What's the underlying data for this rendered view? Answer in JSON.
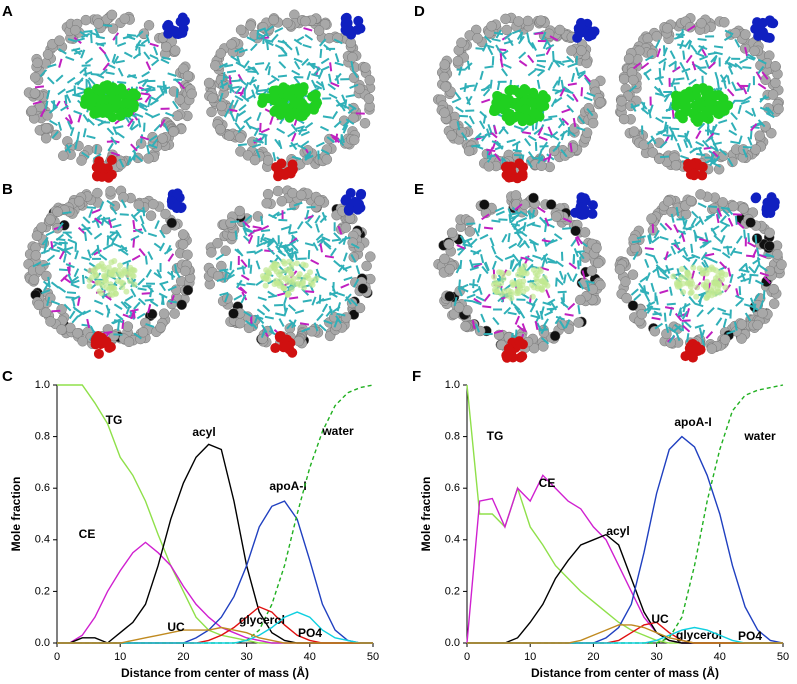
{
  "panel_labels": [
    "A",
    "B",
    "D",
    "E"
  ],
  "chart_data": [
    {
      "type": "line",
      "label": "C",
      "xlabel": "Distance from center of mass (Å)",
      "ylabel": "Mole fraction",
      "xlim": [
        0,
        50
      ],
      "xticks": [
        0,
        10,
        20,
        30,
        40,
        50
      ],
      "ylim": [
        0,
        1
      ],
      "yticks": [
        {
          "value": 0,
          "label": "0.0"
        },
        {
          "value": 0.2,
          "label": "0.2"
        },
        {
          "value": 0.4,
          "label": "0.4"
        },
        {
          "value": 0.6,
          "label": "0.6"
        },
        {
          "value": 0.8,
          "label": "0.8"
        },
        {
          "value": 1,
          "label": "1.0"
        }
      ],
      "x": [
        0,
        2,
        4,
        6,
        8,
        10,
        12,
        14,
        16,
        18,
        20,
        22,
        24,
        26,
        28,
        30,
        32,
        34,
        36,
        38,
        40,
        42,
        44,
        46,
        48,
        50
      ],
      "series": [
        {
          "name": "TG",
          "color": "#8fe04a",
          "values": [
            1,
            1,
            1,
            0.93,
            0.85,
            0.72,
            0.65,
            0.55,
            0.42,
            0.3,
            0.2,
            0.1,
            0.05,
            0.03,
            0.02,
            0.01,
            0,
            0,
            0,
            0,
            0,
            0,
            0,
            0,
            0,
            0
          ]
        },
        {
          "name": "CE",
          "color": "#d020d0",
          "values": [
            0,
            0,
            0.03,
            0.1,
            0.2,
            0.28,
            0.35,
            0.39,
            0.35,
            0.3,
            0.22,
            0.15,
            0.1,
            0.06,
            0.04,
            0.02,
            0.01,
            0,
            0,
            0,
            0,
            0,
            0,
            0,
            0,
            0
          ]
        },
        {
          "name": "acyl",
          "color": "#000000",
          "values": [
            0,
            0,
            0.02,
            0.02,
            0,
            0.04,
            0.08,
            0.15,
            0.3,
            0.48,
            0.62,
            0.72,
            0.77,
            0.75,
            0.55,
            0.3,
            0.12,
            0.04,
            0.01,
            0,
            0,
            0,
            0,
            0,
            0,
            0
          ]
        },
        {
          "name": "apoA-I",
          "color": "#2040c0",
          "values": [
            0,
            0,
            0,
            0,
            0,
            0,
            0,
            0,
            0,
            0,
            0,
            0.02,
            0.05,
            0.1,
            0.18,
            0.3,
            0.45,
            0.53,
            0.55,
            0.48,
            0.32,
            0.15,
            0.05,
            0.01,
            0,
            0
          ]
        },
        {
          "name": "water",
          "color": "#20b020",
          "dashed": true,
          "values": [
            0,
            0,
            0,
            0,
            0,
            0,
            0,
            0,
            0,
            0,
            0,
            0,
            0,
            0,
            0,
            0.01,
            0.05,
            0.15,
            0.3,
            0.5,
            0.68,
            0.82,
            0.92,
            0.97,
            0.99,
            1
          ]
        },
        {
          "name": "glycerol",
          "color": "#e01010",
          "values": [
            0,
            0,
            0,
            0,
            0,
            0,
            0,
            0,
            0,
            0,
            0,
            0,
            0.01,
            0.03,
            0.06,
            0.1,
            0.14,
            0.12,
            0.07,
            0.03,
            0.01,
            0,
            0,
            0,
            0,
            0
          ]
        },
        {
          "name": "PO4",
          "color": "#10d0e0",
          "values": [
            0,
            0,
            0,
            0,
            0,
            0,
            0,
            0,
            0,
            0,
            0,
            0,
            0,
            0,
            0,
            0.01,
            0.03,
            0.06,
            0.1,
            0.12,
            0.1,
            0.05,
            0.02,
            0.01,
            0,
            0
          ]
        },
        {
          "name": "UC",
          "color": "#c08a20",
          "values": [
            0,
            0,
            0,
            0,
            0,
            0,
            0.01,
            0.02,
            0.03,
            0.04,
            0.05,
            0.05,
            0.05,
            0.06,
            0.05,
            0.04,
            0.02,
            0.01,
            0,
            0,
            0,
            0,
            0,
            0,
            0,
            0
          ]
        }
      ]
    },
    {
      "type": "line",
      "label": "F",
      "xlabel": "Distance from center of mass (Å)",
      "ylabel": "Mole fraction",
      "xlim": [
        0,
        50
      ],
      "xticks": [
        0,
        10,
        20,
        30,
        40,
        50
      ],
      "ylim": [
        0,
        1
      ],
      "yticks": [
        {
          "value": 0,
          "label": "0.0"
        },
        {
          "value": 0.2,
          "label": "0.2"
        },
        {
          "value": 0.4,
          "label": "0.4"
        },
        {
          "value": 0.6,
          "label": "0.6"
        },
        {
          "value": 0.8,
          "label": "0.8"
        },
        {
          "value": 1,
          "label": "1.0"
        }
      ],
      "x": [
        0,
        2,
        4,
        6,
        8,
        10,
        12,
        14,
        16,
        18,
        20,
        22,
        24,
        26,
        28,
        30,
        32,
        34,
        36,
        38,
        40,
        42,
        44,
        46,
        48,
        50
      ],
      "series": [
        {
          "name": "TG",
          "color": "#8fe04a",
          "values": [
            1,
            0.5,
            0.5,
            0.45,
            0.6,
            0.45,
            0.38,
            0.3,
            0.25,
            0.2,
            0.16,
            0.12,
            0.08,
            0.05,
            0.03,
            0.01,
            0,
            0,
            0,
            0,
            0,
            0,
            0,
            0,
            0,
            0
          ]
        },
        {
          "name": "CE",
          "color": "#d020d0",
          "values": [
            0,
            0.55,
            0.56,
            0.45,
            0.6,
            0.55,
            0.65,
            0.6,
            0.55,
            0.52,
            0.45,
            0.4,
            0.3,
            0.2,
            0.1,
            0.04,
            0.01,
            0,
            0,
            0,
            0,
            0,
            0,
            0,
            0,
            0
          ]
        },
        {
          "name": "acyl",
          "color": "#000000",
          "values": [
            0,
            0,
            0,
            0,
            0.02,
            0.08,
            0.15,
            0.25,
            0.32,
            0.38,
            0.4,
            0.42,
            0.38,
            0.25,
            0.12,
            0.04,
            0.01,
            0,
            0,
            0,
            0,
            0,
            0,
            0,
            0,
            0
          ]
        },
        {
          "name": "apoA-I",
          "color": "#2040c0",
          "values": [
            0,
            0,
            0,
            0,
            0,
            0,
            0,
            0,
            0,
            0,
            0,
            0.02,
            0.06,
            0.15,
            0.35,
            0.58,
            0.75,
            0.8,
            0.76,
            0.65,
            0.5,
            0.3,
            0.14,
            0.05,
            0.01,
            0
          ]
        },
        {
          "name": "water",
          "color": "#20b020",
          "dashed": true,
          "values": [
            0,
            0,
            0,
            0,
            0,
            0,
            0,
            0,
            0,
            0,
            0,
            0,
            0,
            0,
            0,
            0,
            0.02,
            0.1,
            0.3,
            0.55,
            0.75,
            0.9,
            0.96,
            0.98,
            0.99,
            1
          ]
        },
        {
          "name": "glycerol",
          "color": "#e01010",
          "values": [
            0,
            0,
            0,
            0,
            0,
            0,
            0,
            0,
            0,
            0,
            0,
            0,
            0.01,
            0.04,
            0.07,
            0.08,
            0.04,
            0.01,
            0,
            0,
            0,
            0,
            0,
            0,
            0,
            0
          ]
        },
        {
          "name": "PO4",
          "color": "#10d0e0",
          "values": [
            0,
            0,
            0,
            0,
            0,
            0,
            0,
            0,
            0,
            0,
            0,
            0,
            0,
            0,
            0,
            0.01,
            0.03,
            0.05,
            0.06,
            0.05,
            0.03,
            0.01,
            0,
            0,
            0,
            0
          ]
        },
        {
          "name": "UC",
          "color": "#c08a20",
          "values": [
            0,
            0,
            0,
            0,
            0,
            0,
            0,
            0,
            0,
            0.01,
            0.03,
            0.05,
            0.07,
            0.07,
            0.06,
            0.04,
            0.02,
            0.01,
            0,
            0,
            0,
            0,
            0,
            0,
            0,
            0
          ]
        }
      ]
    }
  ]
}
